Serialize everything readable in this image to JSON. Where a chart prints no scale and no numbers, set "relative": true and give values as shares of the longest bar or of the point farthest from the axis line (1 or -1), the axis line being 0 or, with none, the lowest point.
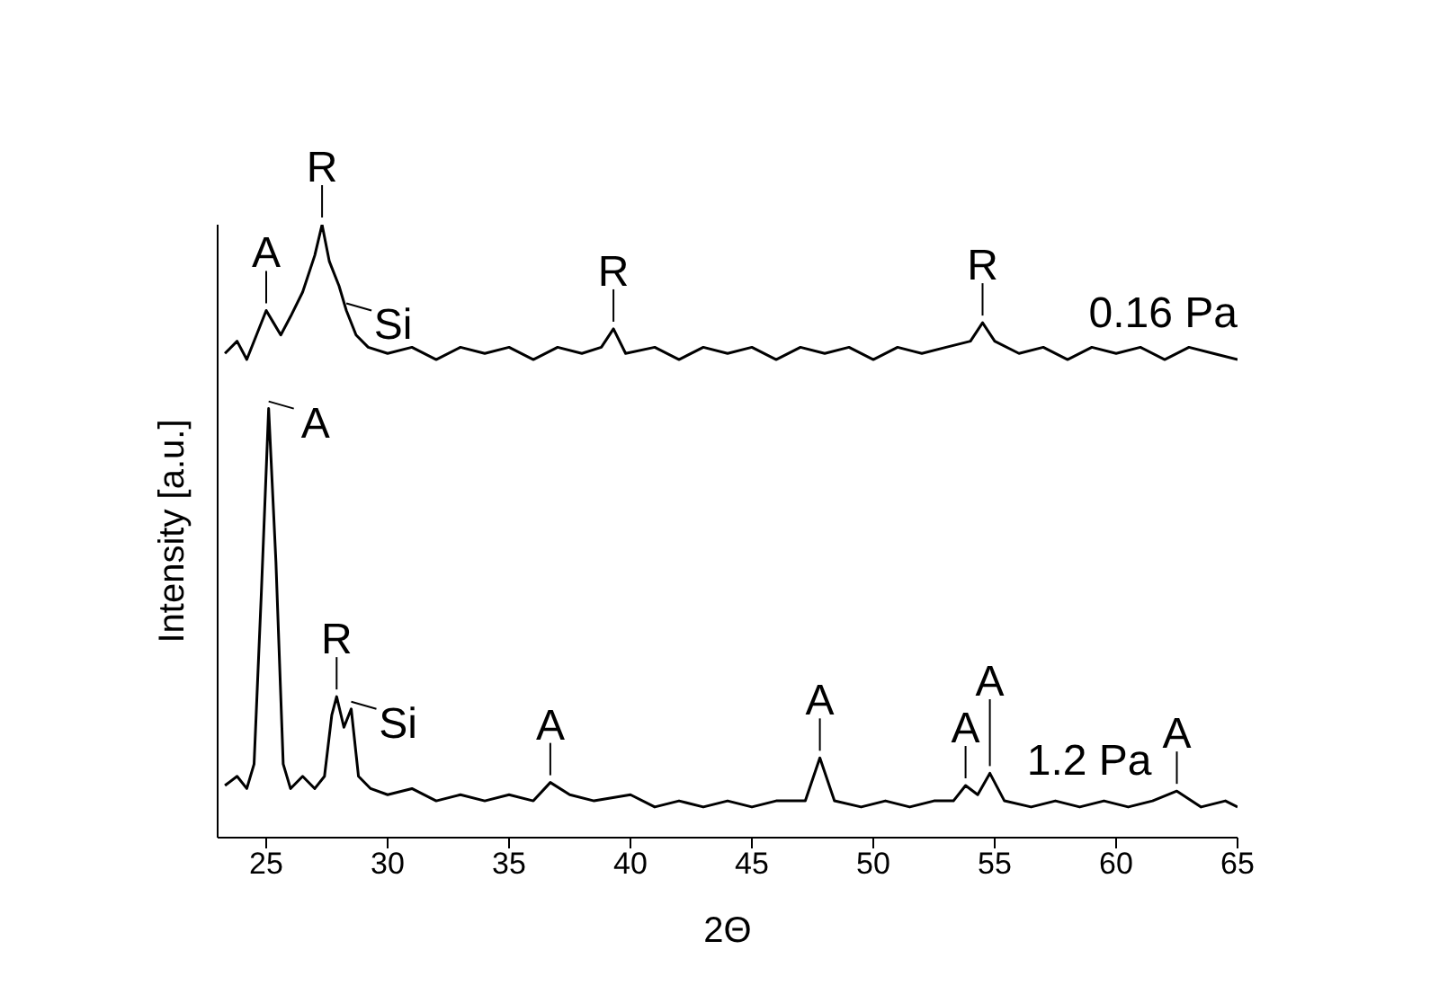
{
  "chart_data": {
    "type": "line",
    "xlabel": "2Θ",
    "ylabel": "Intensity [a.u.]",
    "relative": true,
    "xlim": [
      23,
      65
    ],
    "xticks": [
      25,
      30,
      35,
      40,
      45,
      50,
      55,
      60,
      65
    ],
    "marker": "none",
    "line_style": "solid",
    "series": [
      {
        "name": "0.16 Pa",
        "color": "#000000",
        "x": [
          23.3,
          23.8,
          24.2,
          24.6,
          25.0,
          25.3,
          25.6,
          26.0,
          26.5,
          27.0,
          27.3,
          27.6,
          28.0,
          28.3,
          28.7,
          29.2,
          30,
          31,
          32,
          33,
          34,
          35,
          36,
          37,
          38,
          38.8,
          39.3,
          39.8,
          41,
          42,
          43,
          44,
          45,
          46,
          47,
          48,
          49,
          50,
          51,
          52,
          53,
          54,
          54.5,
          55,
          56,
          57,
          58,
          59,
          60,
          61,
          62,
          63,
          64,
          65
        ],
        "values": [
          0.79,
          0.81,
          0.78,
          0.82,
          0.86,
          0.84,
          0.82,
          0.85,
          0.89,
          0.95,
          1.0,
          0.94,
          0.9,
          0.86,
          0.82,
          0.8,
          0.79,
          0.8,
          0.78,
          0.8,
          0.79,
          0.8,
          0.78,
          0.8,
          0.79,
          0.8,
          0.83,
          0.79,
          0.8,
          0.78,
          0.8,
          0.79,
          0.8,
          0.78,
          0.8,
          0.79,
          0.8,
          0.78,
          0.8,
          0.79,
          0.8,
          0.81,
          0.84,
          0.81,
          0.79,
          0.8,
          0.78,
          0.8,
          0.79,
          0.8,
          0.78,
          0.8,
          0.79,
          0.78
        ]
      },
      {
        "name": "1.2 Pa",
        "color": "#000000",
        "x": [
          23.3,
          23.8,
          24.2,
          24.5,
          24.8,
          25.1,
          25.4,
          25.7,
          26,
          26.5,
          27,
          27.4,
          27.7,
          27.9,
          28.2,
          28.5,
          28.8,
          29.3,
          30,
          31,
          32,
          33,
          34,
          35,
          36,
          36.7,
          37.5,
          38.5,
          40,
          41,
          42,
          43,
          44,
          45,
          46,
          47.2,
          47.8,
          48.4,
          49.5,
          50.5,
          51.5,
          52.5,
          53.3,
          53.8,
          54.3,
          54.8,
          55.4,
          56.5,
          57.5,
          58.5,
          59.5,
          60.5,
          61.5,
          62.5,
          63.5,
          64.5,
          65
        ],
        "values": [
          0.085,
          0.1,
          0.08,
          0.12,
          0.4,
          0.7,
          0.45,
          0.12,
          0.08,
          0.1,
          0.08,
          0.1,
          0.2,
          0.23,
          0.18,
          0.21,
          0.1,
          0.08,
          0.07,
          0.08,
          0.06,
          0.07,
          0.06,
          0.07,
          0.06,
          0.09,
          0.07,
          0.06,
          0.07,
          0.05,
          0.06,
          0.05,
          0.06,
          0.05,
          0.06,
          0.06,
          0.13,
          0.06,
          0.05,
          0.06,
          0.05,
          0.06,
          0.06,
          0.085,
          0.07,
          0.105,
          0.06,
          0.05,
          0.06,
          0.05,
          0.06,
          0.05,
          0.06,
          0.076,
          0.05,
          0.06,
          0.05
        ]
      }
    ],
    "annotations": [
      {
        "text": "A",
        "x": 25.0,
        "y": 0.86
      },
      {
        "text": "R",
        "x": 27.3,
        "y": 1.0
      },
      {
        "text": "Si",
        "x": 28.3,
        "y": 0.86
      },
      {
        "text": "R",
        "x": 39.3,
        "y": 0.83
      },
      {
        "text": "R",
        "x": 54.5,
        "y": 0.84
      },
      {
        "text": "A",
        "x": 25.1,
        "y": 0.7
      },
      {
        "text": "R",
        "x": 27.9,
        "y": 0.23
      },
      {
        "text": "Si",
        "x": 28.5,
        "y": 0.21
      },
      {
        "text": "A",
        "x": 36.7,
        "y": 0.09
      },
      {
        "text": "A",
        "x": 47.8,
        "y": 0.13
      },
      {
        "text": "A",
        "x": 53.8,
        "y": 0.085
      },
      {
        "text": "A",
        "x": 54.8,
        "y": 0.105
      },
      {
        "text": "A",
        "x": 62.5,
        "y": 0.076
      }
    ]
  }
}
